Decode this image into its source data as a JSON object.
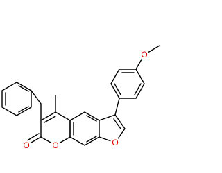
{
  "molecule": {
    "atom_labels": [
      "O",
      "O",
      "O",
      "O"
    ]
  }
}
